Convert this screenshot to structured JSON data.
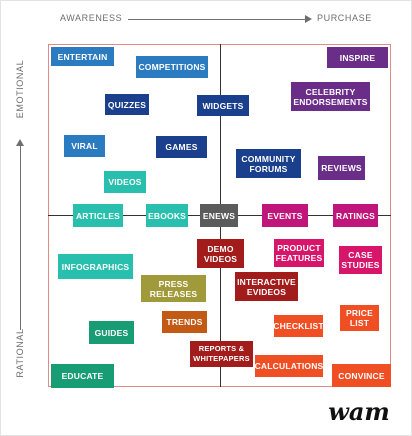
{
  "axes": {
    "x_start": "AWARENESS",
    "x_end": "PURCHASE",
    "y_top": "EMOTIONAL",
    "y_bottom": "RATIONAL"
  },
  "colors": {
    "blue": "#2a7bbf",
    "navy": "#1a3f8c",
    "purple": "#6b2e88",
    "teal": "#29bfae",
    "magenta": "#c0157a",
    "gray": "#5b5b5b",
    "maroon": "#a31c1c",
    "pink": "#d7156a",
    "orange_red": "#f04e23",
    "olive": "#a19a3a",
    "burnt_orange": "#c25a16",
    "green": "#189c73",
    "axis_text": "#6e6e6e",
    "divider": "#333333",
    "grid_border": "#e08a8a"
  },
  "tiles": {
    "entertain": "ENTERTAIN",
    "competitions": "COMPETITIONS",
    "inspire": "INSPIRE",
    "quizzes": "QUIZZES",
    "widgets": "WIDGETS",
    "celebrity": "CELEBRITY\nENDORSEMENTS",
    "viral": "VIRAL",
    "games": "GAMES",
    "community": "COMMUNITY\nFORUMS",
    "reviews": "REVIEWS",
    "videos": "VIDEOS",
    "articles": "ARTICLES",
    "ebooks": "EBOOKS",
    "enews": "ENEWS",
    "events": "EVENTS",
    "ratings": "RATINGS",
    "demo_videos": "DEMO\nVIDEOS",
    "product_features": "PRODUCT\nFEATURES",
    "case_studies": "CASE\nSTUDIES",
    "infographics": "INFOGRAPHICS",
    "press_releases": "PRESS\nRELEASES",
    "interactive_evideos": "INTERACTIVE\nEVIDEOS",
    "trends": "TRENDS",
    "price_list": "PRICE\nLIST",
    "checklist": "CHECKLIST",
    "guides": "GUIDES",
    "reports_whitepapers": "REPORTS &\nWHITEPAPERS",
    "calculations": "CALCULATIONS",
    "educate": "EDUCATE",
    "convince": "CONVINCE"
  },
  "logo": {
    "icon": "wam-script-logo",
    "text": "wam"
  }
}
